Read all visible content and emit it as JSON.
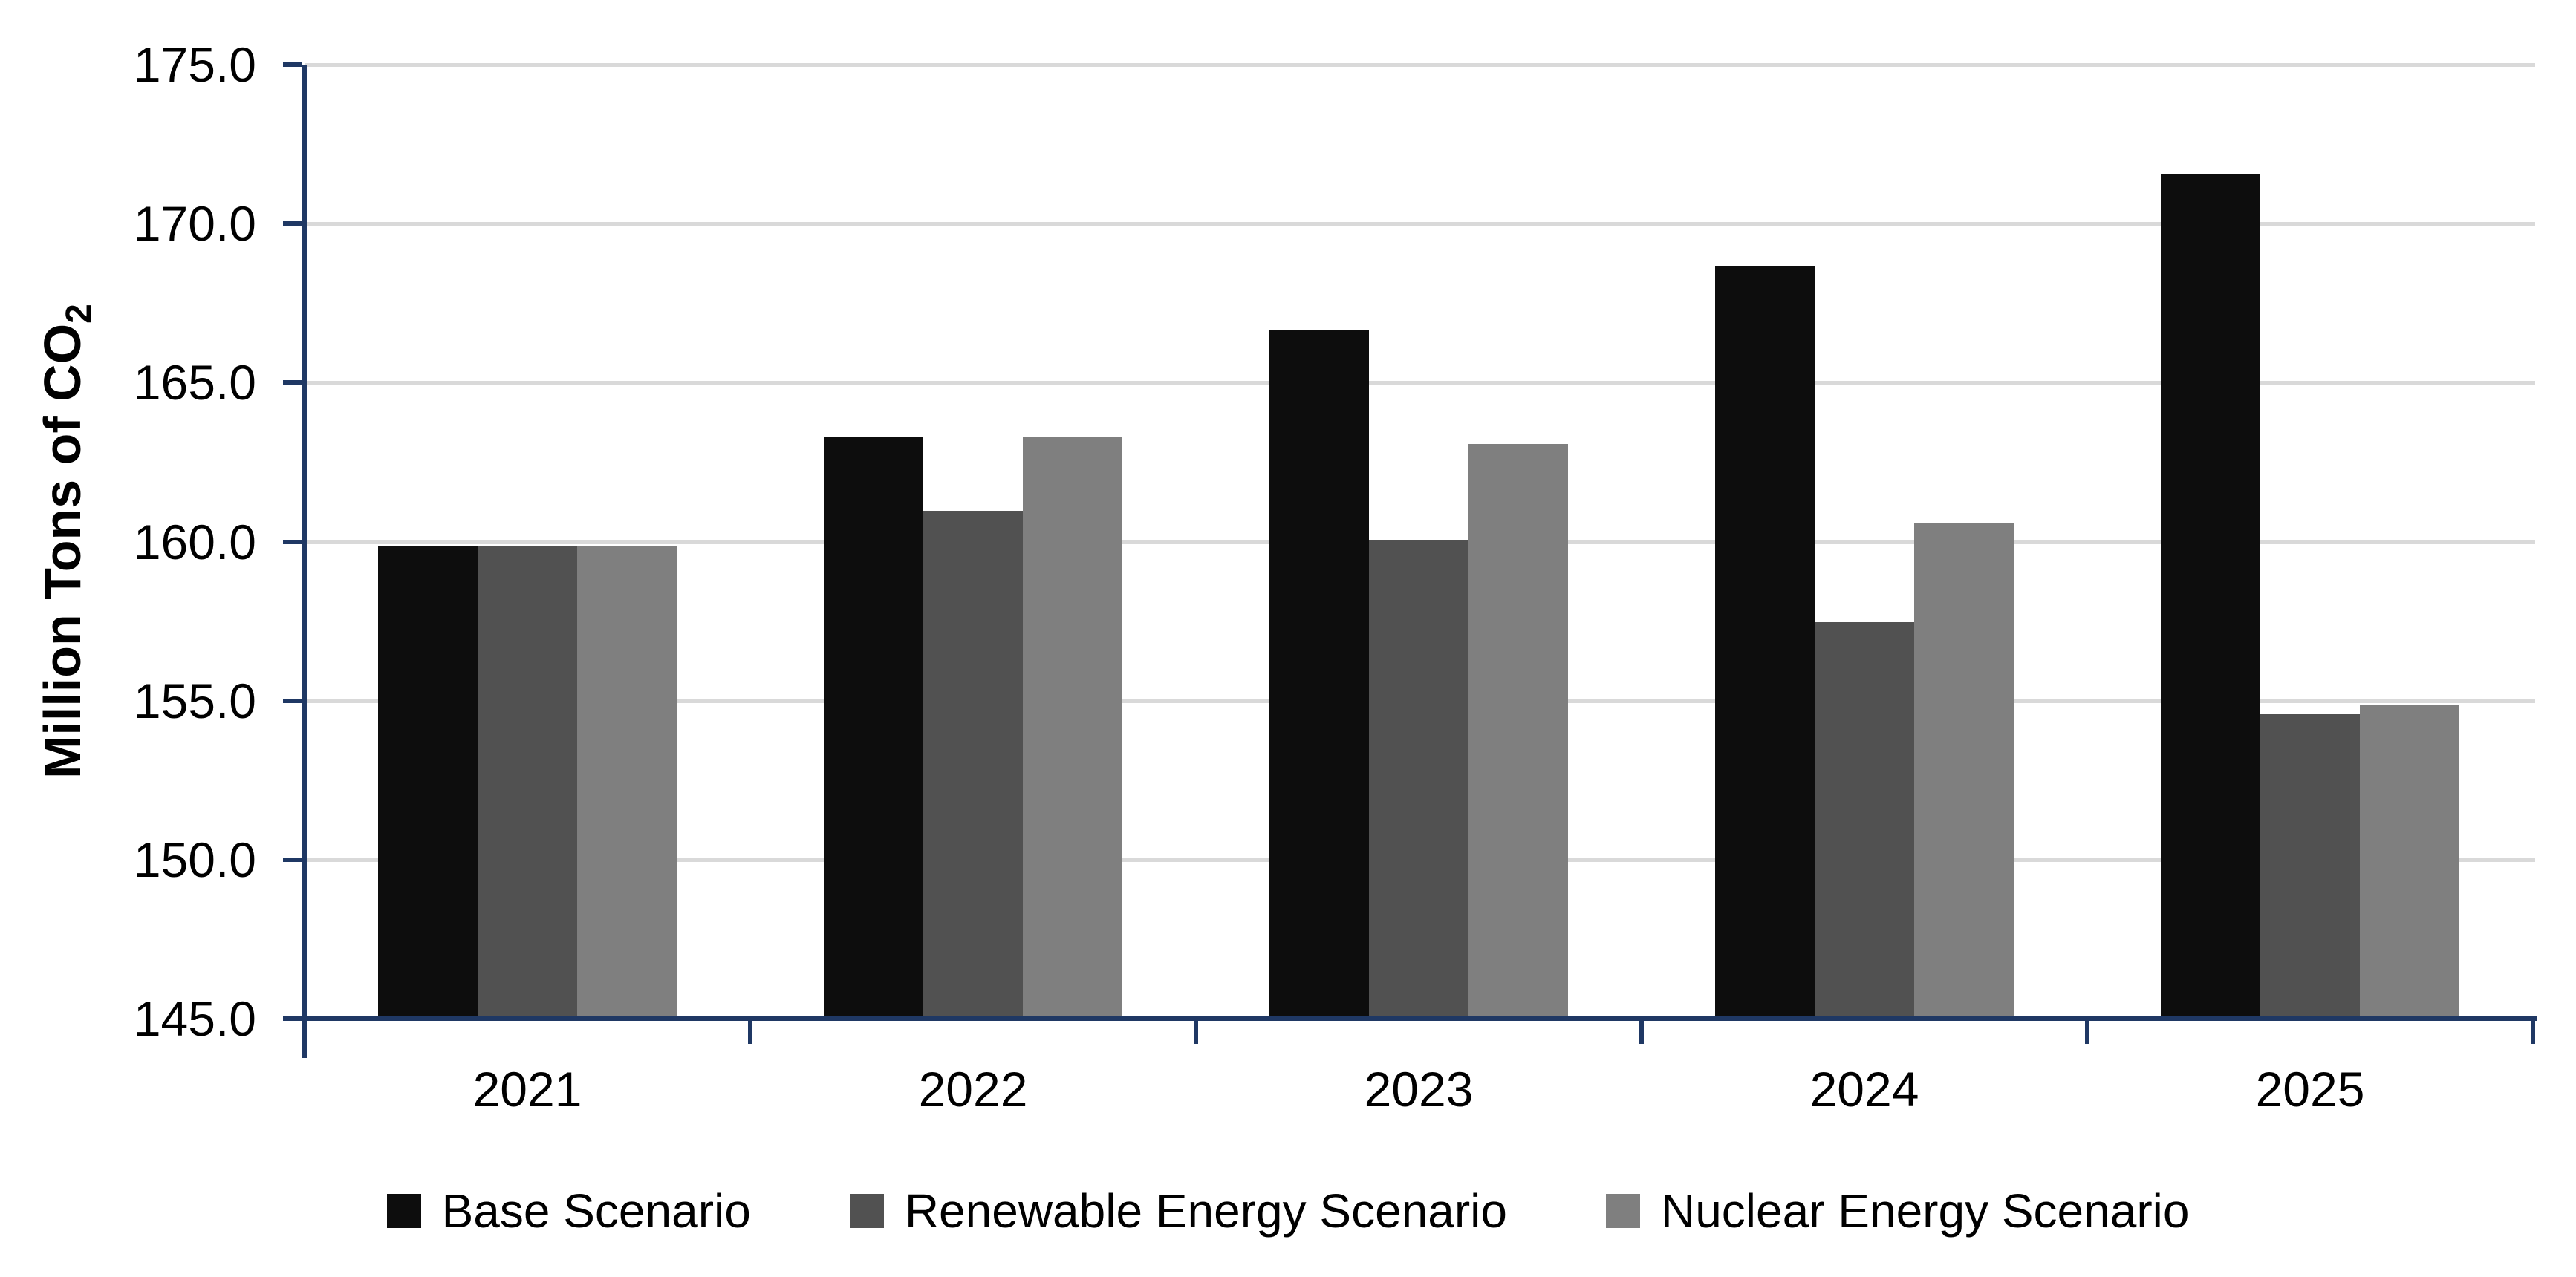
{
  "chart_data": {
    "type": "bar",
    "title": "",
    "categories": [
      "2021",
      "2022",
      "2023",
      "2024",
      "2025"
    ],
    "series": [
      {
        "name": "Base Scenario",
        "color": "#0D0D0D",
        "values": [
          159.8,
          163.2,
          166.6,
          168.6,
          171.5
        ]
      },
      {
        "name": "Renewable Energy Scenario",
        "color": "#515151",
        "values": [
          159.8,
          160.9,
          160.0,
          157.4,
          154.5
        ]
      },
      {
        "name": "Nuclear Energy Scenario",
        "color": "#7F7F7F",
        "values": [
          159.8,
          163.2,
          163.0,
          160.5,
          154.8
        ]
      }
    ],
    "xlabel": "",
    "ylabel": {
      "text": "Million Tons of CO",
      "subscript": "2"
    },
    "ylim": [
      145,
      175
    ],
    "yticks": [
      {
        "value": 145,
        "label": "145.0"
      },
      {
        "value": 150,
        "label": "150.0"
      },
      {
        "value": 155,
        "label": "155.0"
      },
      {
        "value": 160,
        "label": "160.0"
      },
      {
        "value": 165,
        "label": "165.0"
      },
      {
        "value": 170,
        "label": "170.0"
      },
      {
        "value": 175,
        "label": "175.0"
      }
    ],
    "grid": "horizontal gridlines on, at every 5 units",
    "legend_position": "bottom",
    "colors": {
      "axis": "#1F3864",
      "gridline": "#D9D9D9",
      "text": "#000000",
      "background": "#FFFFFF"
    }
  }
}
